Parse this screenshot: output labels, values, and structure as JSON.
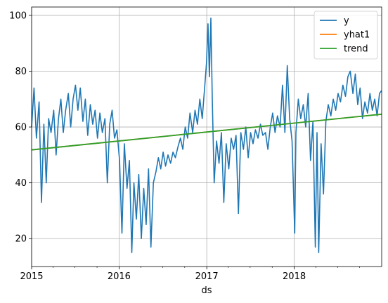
{
  "chart_data": {
    "type": "line",
    "title": "",
    "xlabel": "ds",
    "ylabel": "",
    "x_domain": [
      "2015-01-01",
      "2019-01-01"
    ],
    "ylim": [
      10,
      103
    ],
    "grid": true,
    "legend_position": "top-right",
    "x_ticks": [
      {
        "date": "2015-01-01",
        "label": "2015"
      },
      {
        "date": "2016-01-01",
        "label": "2016"
      },
      {
        "date": "2017-01-01",
        "label": "2017"
      },
      {
        "date": "2018-01-01",
        "label": "2018"
      }
    ],
    "y_ticks": [
      20,
      40,
      60,
      80,
      100
    ],
    "series": [
      {
        "name": "y",
        "color": "#1f77b4",
        "points": [
          [
            "2015-01-01",
            60
          ],
          [
            "2015-01-11",
            74
          ],
          [
            "2015-01-21",
            56
          ],
          [
            "2015-02-01",
            69
          ],
          [
            "2015-02-11",
            33
          ],
          [
            "2015-02-21",
            61
          ],
          [
            "2015-03-03",
            40
          ],
          [
            "2015-03-13",
            63
          ],
          [
            "2015-03-23",
            58
          ],
          [
            "2015-04-03",
            66
          ],
          [
            "2015-04-13",
            50
          ],
          [
            "2015-04-23",
            63
          ],
          [
            "2015-05-03",
            70
          ],
          [
            "2015-05-13",
            58
          ],
          [
            "2015-05-23",
            66
          ],
          [
            "2015-06-03",
            72
          ],
          [
            "2015-06-13",
            60
          ],
          [
            "2015-06-23",
            70
          ],
          [
            "2015-07-03",
            75
          ],
          [
            "2015-07-13",
            66
          ],
          [
            "2015-07-23",
            74
          ],
          [
            "2015-08-03",
            62
          ],
          [
            "2015-08-13",
            70
          ],
          [
            "2015-08-23",
            57
          ],
          [
            "2015-09-03",
            68
          ],
          [
            "2015-09-13",
            61
          ],
          [
            "2015-09-23",
            66
          ],
          [
            "2015-10-03",
            56
          ],
          [
            "2015-10-13",
            65
          ],
          [
            "2015-10-23",
            58
          ],
          [
            "2015-11-03",
            63
          ],
          [
            "2015-11-13",
            40
          ],
          [
            "2015-11-23",
            61
          ],
          [
            "2015-12-03",
            66
          ],
          [
            "2015-12-13",
            56
          ],
          [
            "2015-12-23",
            59
          ],
          [
            "2016-01-03",
            48
          ],
          [
            "2016-01-13",
            22
          ],
          [
            "2016-01-23",
            54
          ],
          [
            "2016-02-03",
            38
          ],
          [
            "2016-02-13",
            48
          ],
          [
            "2016-02-23",
            15
          ],
          [
            "2016-03-03",
            40
          ],
          [
            "2016-03-13",
            27
          ],
          [
            "2016-03-23",
            43
          ],
          [
            "2016-04-03",
            20
          ],
          [
            "2016-04-13",
            38
          ],
          [
            "2016-04-23",
            25
          ],
          [
            "2016-05-03",
            45
          ],
          [
            "2016-05-13",
            17
          ],
          [
            "2016-05-23",
            40
          ],
          [
            "2016-06-03",
            44
          ],
          [
            "2016-06-13",
            49
          ],
          [
            "2016-06-23",
            45
          ],
          [
            "2016-07-03",
            51
          ],
          [
            "2016-07-13",
            46
          ],
          [
            "2016-07-23",
            50
          ],
          [
            "2016-08-03",
            47
          ],
          [
            "2016-08-13",
            51
          ],
          [
            "2016-08-23",
            49
          ],
          [
            "2016-09-03",
            53
          ],
          [
            "2016-09-13",
            56
          ],
          [
            "2016-09-23",
            52
          ],
          [
            "2016-10-03",
            60
          ],
          [
            "2016-10-13",
            56
          ],
          [
            "2016-10-23",
            65
          ],
          [
            "2016-11-03",
            58
          ],
          [
            "2016-11-13",
            66
          ],
          [
            "2016-11-23",
            61
          ],
          [
            "2016-12-03",
            70
          ],
          [
            "2016-12-13",
            63
          ],
          [
            "2016-12-23",
            74
          ],
          [
            "2016-12-31",
            83
          ],
          [
            "2017-01-06",
            97
          ],
          [
            "2017-01-12",
            78
          ],
          [
            "2017-01-18",
            99
          ],
          [
            "2017-01-24",
            70
          ],
          [
            "2017-02-01",
            40
          ],
          [
            "2017-02-11",
            55
          ],
          [
            "2017-02-21",
            47
          ],
          [
            "2017-03-03",
            58
          ],
          [
            "2017-03-13",
            33
          ],
          [
            "2017-03-23",
            54
          ],
          [
            "2017-04-03",
            45
          ],
          [
            "2017-04-13",
            56
          ],
          [
            "2017-04-23",
            52
          ],
          [
            "2017-05-03",
            57
          ],
          [
            "2017-05-13",
            29
          ],
          [
            "2017-05-23",
            58
          ],
          [
            "2017-06-03",
            52
          ],
          [
            "2017-06-13",
            60
          ],
          [
            "2017-06-23",
            49
          ],
          [
            "2017-07-03",
            58
          ],
          [
            "2017-07-13",
            54
          ],
          [
            "2017-07-23",
            59
          ],
          [
            "2017-08-03",
            56
          ],
          [
            "2017-08-13",
            61
          ],
          [
            "2017-08-23",
            57
          ],
          [
            "2017-09-03",
            58
          ],
          [
            "2017-09-13",
            52
          ],
          [
            "2017-09-23",
            60
          ],
          [
            "2017-10-03",
            65
          ],
          [
            "2017-10-13",
            58
          ],
          [
            "2017-10-23",
            64
          ],
          [
            "2017-11-03",
            60
          ],
          [
            "2017-11-13",
            75
          ],
          [
            "2017-11-23",
            58
          ],
          [
            "2017-12-03",
            82
          ],
          [
            "2017-12-13",
            63
          ],
          [
            "2017-12-23",
            55
          ],
          [
            "2018-01-03",
            22
          ],
          [
            "2018-01-08",
            58
          ],
          [
            "2018-01-18",
            70
          ],
          [
            "2018-01-28",
            63
          ],
          [
            "2018-02-08",
            68
          ],
          [
            "2018-02-18",
            60
          ],
          [
            "2018-02-28",
            72
          ],
          [
            "2018-03-10",
            48
          ],
          [
            "2018-03-20",
            62
          ],
          [
            "2018-03-30",
            17
          ],
          [
            "2018-04-06",
            58
          ],
          [
            "2018-04-13",
            15
          ],
          [
            "2018-04-23",
            54
          ],
          [
            "2018-05-03",
            36
          ],
          [
            "2018-05-13",
            62
          ],
          [
            "2018-05-23",
            68
          ],
          [
            "2018-06-03",
            64
          ],
          [
            "2018-06-13",
            70
          ],
          [
            "2018-06-23",
            66
          ],
          [
            "2018-07-03",
            72
          ],
          [
            "2018-07-13",
            69
          ],
          [
            "2018-07-23",
            75
          ],
          [
            "2018-08-03",
            71
          ],
          [
            "2018-08-13",
            78
          ],
          [
            "2018-08-23",
            80
          ],
          [
            "2018-09-03",
            72
          ],
          [
            "2018-09-13",
            79
          ],
          [
            "2018-09-23",
            68
          ],
          [
            "2018-10-03",
            74
          ],
          [
            "2018-10-13",
            63
          ],
          [
            "2018-10-23",
            69
          ],
          [
            "2018-11-03",
            65
          ],
          [
            "2018-11-13",
            72
          ],
          [
            "2018-11-23",
            66
          ],
          [
            "2018-12-03",
            70
          ],
          [
            "2018-12-13",
            64
          ],
          [
            "2018-12-23",
            72
          ],
          [
            "2018-12-31",
            73
          ]
        ]
      },
      {
        "name": "yhat1",
        "color": "#ff7f0e",
        "points": [
          [
            "2015-01-01",
            51.8
          ],
          [
            "2019-01-01",
            64.6
          ]
        ]
      },
      {
        "name": "trend",
        "color": "#2ca02c",
        "points": [
          [
            "2015-01-01",
            51.8
          ],
          [
            "2019-01-01",
            64.6
          ]
        ]
      }
    ]
  }
}
